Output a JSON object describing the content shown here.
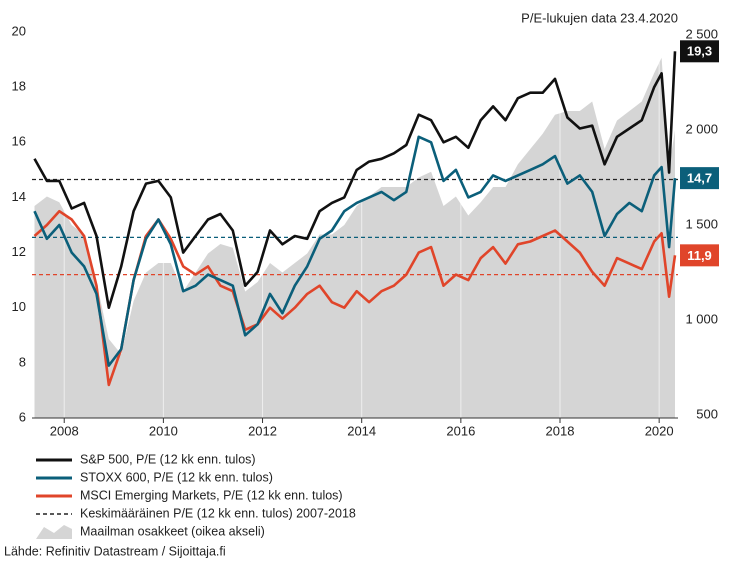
{
  "chart_data": {
    "type": "line",
    "note": "P/E-lukujen data 23.4.2020",
    "source": "Lähde: Refinitiv Datastream / Sijoittaja.fi",
    "x": [
      2007.4,
      2007.65,
      2007.9,
      2008.15,
      2008.4,
      2008.65,
      2008.9,
      2009.15,
      2009.4,
      2009.65,
      2009.9,
      2010.15,
      2010.4,
      2010.65,
      2010.9,
      2011.15,
      2011.4,
      2011.65,
      2011.9,
      2012.15,
      2012.4,
      2012.65,
      2012.9,
      2013.15,
      2013.4,
      2013.65,
      2013.9,
      2014.15,
      2014.4,
      2014.65,
      2014.9,
      2015.15,
      2015.4,
      2015.65,
      2015.9,
      2016.15,
      2016.4,
      2016.65,
      2016.9,
      2017.15,
      2017.4,
      2017.65,
      2017.9,
      2018.15,
      2018.4,
      2018.65,
      2018.9,
      2019.15,
      2019.4,
      2019.65,
      2019.9,
      2020.05,
      2020.2,
      2020.32
    ],
    "xlim": [
      2007.35,
      2020.38
    ],
    "xticks": [
      2008,
      2010,
      2012,
      2014,
      2016,
      2018,
      2020
    ],
    "ylim": [
      6,
      20
    ],
    "yticks": [
      6,
      8,
      10,
      12,
      14,
      16,
      18,
      20
    ],
    "y2lim": [
      484,
      2516
    ],
    "y2ticks": [
      {
        "value": 500,
        "label": "500"
      },
      {
        "value": 1000,
        "label": "1 000"
      },
      {
        "value": 1500,
        "label": "1 500"
      },
      {
        "value": 2000,
        "label": "2 000"
      },
      {
        "value": 2500,
        "label": "2 500"
      }
    ],
    "grid": "x",
    "area": {
      "name": "Maailman osakkeet (oikea akseli)",
      "color": "#d5d5d5",
      "axis": "y2",
      "values": [
        1600,
        1650,
        1620,
        1500,
        1450,
        1200,
        900,
        820,
        1100,
        1250,
        1300,
        1300,
        1150,
        1250,
        1350,
        1400,
        1380,
        1150,
        1200,
        1300,
        1250,
        1300,
        1350,
        1450,
        1450,
        1500,
        1600,
        1650,
        1700,
        1700,
        1700,
        1750,
        1780,
        1600,
        1650,
        1550,
        1620,
        1700,
        1700,
        1820,
        1900,
        1980,
        2080,
        2100,
        2100,
        2150,
        1900,
        2050,
        2100,
        2150,
        2300,
        2380,
        1800,
        2000
      ]
    },
    "averages": {
      "name": "Keskimääräinen P/E (12 kk enn. tulos) 2007-2018",
      "lines": [
        {
          "value": 14.65,
          "color": "#222222"
        },
        {
          "value": 12.55,
          "color": "#0b5f7a"
        },
        {
          "value": 11.2,
          "color": "#e0452a"
        }
      ]
    },
    "series": [
      {
        "name": "S&P 500, P/E (12 kk enn. tulos)",
        "color": "#111111",
        "values": [
          15.4,
          14.6,
          14.6,
          13.6,
          13.8,
          12.6,
          10.0,
          11.5,
          13.5,
          14.5,
          14.6,
          14.0,
          12.0,
          12.6,
          13.2,
          13.4,
          12.8,
          10.8,
          11.3,
          12.8,
          12.3,
          12.6,
          12.5,
          13.5,
          13.8,
          14.0,
          15.0,
          15.3,
          15.4,
          15.6,
          15.9,
          17.0,
          16.8,
          16.0,
          16.2,
          15.8,
          16.8,
          17.3,
          16.8,
          17.6,
          17.8,
          17.8,
          18.3,
          16.9,
          16.5,
          16.6,
          15.2,
          16.2,
          16.5,
          16.8,
          18.0,
          18.5,
          14.9,
          19.3
        ],
        "value_labels": [
          null,
          null,
          null,
          null,
          null,
          null,
          null,
          null,
          null,
          null,
          null,
          null,
          null,
          null,
          null,
          null,
          null,
          null,
          null,
          null,
          null,
          null,
          null,
          null,
          null,
          null,
          null,
          null,
          null,
          null,
          null,
          null,
          null,
          null,
          null,
          null,
          null,
          null,
          null,
          null,
          null,
          null,
          null,
          null,
          null,
          null,
          null,
          null,
          null,
          null,
          null,
          null,
          null,
          "19,3"
        ]
      },
      {
        "name": "STOXX 600, P/E (12 kk enn. tulos)",
        "color": "#0b5f7a",
        "values": [
          13.5,
          12.5,
          13.0,
          12.0,
          11.5,
          10.5,
          7.9,
          8.5,
          11.0,
          12.5,
          13.2,
          12.3,
          10.6,
          10.8,
          11.2,
          11.0,
          10.8,
          9.0,
          9.4,
          10.5,
          9.8,
          10.8,
          11.5,
          12.5,
          12.8,
          13.5,
          13.8,
          14.0,
          14.2,
          13.9,
          14.2,
          16.2,
          16.0,
          14.6,
          15.0,
          14.0,
          14.2,
          14.8,
          14.6,
          14.8,
          15.0,
          15.2,
          15.5,
          14.5,
          14.8,
          14.2,
          12.6,
          13.4,
          13.8,
          13.5,
          14.8,
          15.1,
          12.2,
          14.7
        ],
        "value_labels": [
          null,
          null,
          null,
          null,
          null,
          null,
          null,
          null,
          null,
          null,
          null,
          null,
          null,
          null,
          null,
          null,
          null,
          null,
          null,
          null,
          null,
          null,
          null,
          null,
          null,
          null,
          null,
          null,
          null,
          null,
          null,
          null,
          null,
          null,
          null,
          null,
          null,
          null,
          null,
          null,
          null,
          null,
          null,
          null,
          null,
          null,
          null,
          null,
          null,
          null,
          null,
          null,
          null,
          "14,7"
        ]
      },
      {
        "name": "MSCI Emerging Markets, P/E (12 kk enn. tulos)",
        "color": "#e0452a",
        "values": [
          12.6,
          13.0,
          13.5,
          13.2,
          12.6,
          10.8,
          7.2,
          8.5,
          11.0,
          12.6,
          13.2,
          12.5,
          11.5,
          11.2,
          11.5,
          10.8,
          10.6,
          9.2,
          9.4,
          10.0,
          9.6,
          10.0,
          10.5,
          10.8,
          10.2,
          10.0,
          10.6,
          10.2,
          10.6,
          10.8,
          11.2,
          12.0,
          12.2,
          10.8,
          11.2,
          11.0,
          11.8,
          12.2,
          11.6,
          12.3,
          12.4,
          12.6,
          12.8,
          12.4,
          12.0,
          11.3,
          10.8,
          11.8,
          11.6,
          11.4,
          12.4,
          12.7,
          10.4,
          11.9
        ],
        "value_labels": [
          null,
          null,
          null,
          null,
          null,
          null,
          null,
          null,
          null,
          null,
          null,
          null,
          null,
          null,
          null,
          null,
          null,
          null,
          null,
          null,
          null,
          null,
          null,
          null,
          null,
          null,
          null,
          null,
          null,
          null,
          null,
          null,
          null,
          null,
          null,
          null,
          null,
          null,
          null,
          null,
          null,
          null,
          null,
          null,
          null,
          null,
          null,
          null,
          null,
          null,
          null,
          null,
          null,
          "11,9"
        ]
      }
    ]
  }
}
